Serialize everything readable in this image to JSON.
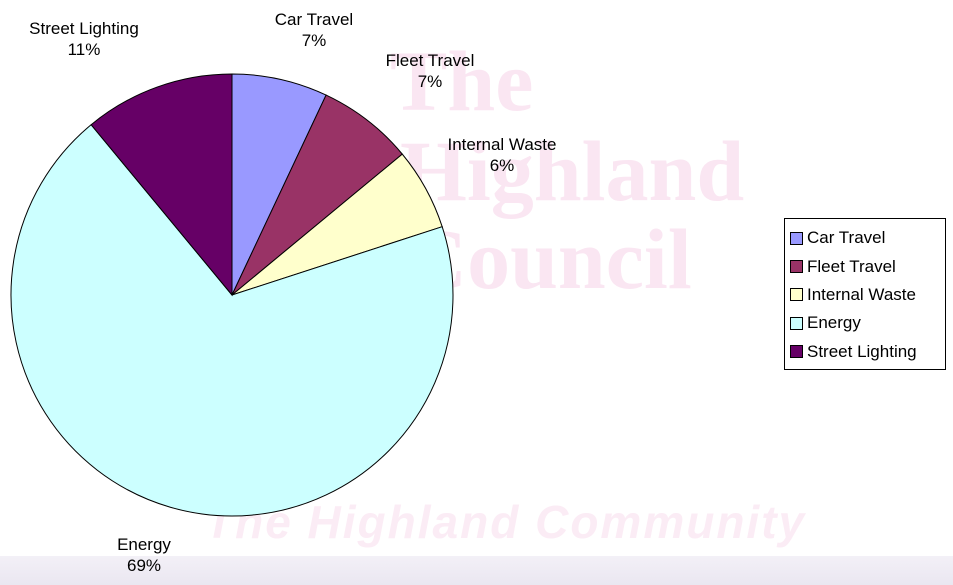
{
  "chart_data": {
    "type": "pie",
    "categories": [
      "Car Travel",
      "Fleet Travel",
      "Internal Waste",
      "Energy",
      "Street Lighting"
    ],
    "values": [
      7,
      7,
      6,
      69,
      11
    ],
    "value_labels": [
      "7%",
      "7%",
      "6%",
      "69%",
      "11%"
    ],
    "colors": [
      "#9999ff",
      "#993366",
      "#ffffcc",
      "#ccffff",
      "#660066"
    ],
    "start_angle": "12 o'clock, clockwise",
    "legend": "right"
  },
  "legend": {
    "items": [
      "Car Travel",
      "Fleet Travel",
      "Internal Waste",
      "Energy",
      "Street Lighting"
    ]
  },
  "watermark": {
    "lines": [
      "The",
      "Highland",
      "Council"
    ],
    "tagline": "The Highland Community"
  }
}
